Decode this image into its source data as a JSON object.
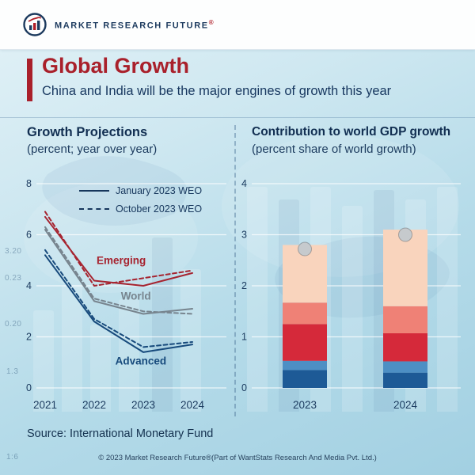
{
  "header": {
    "brand": "MARKET RESEARCH FUTURE",
    "registered_mark": "®"
  },
  "title": {
    "heading": "Global Growth",
    "subtitle": "China and India will be the major engines of growth this year"
  },
  "source": "Source: International Monetary Fund",
  "footer": "© 2023 Market Research Future®(Part of WantStats Research And Media Pvt. Ltd.)",
  "background": {
    "ticker": [
      "3.20",
      "0.23",
      "0.20",
      "1.3",
      "1:6"
    ]
  },
  "colors": {
    "accent_red": "#a9202b",
    "navy": "#17375f",
    "emerging": "#a62430",
    "world": "#77848e",
    "advanced": "#174a7c",
    "marker_gray": "#c6cacd"
  },
  "chart_data": [
    {
      "type": "line",
      "title": "Growth Projections",
      "subtitle": "(percent; year over year)",
      "x": [
        2021,
        2022,
        2023,
        2024
      ],
      "ylim": [
        0,
        8
      ],
      "yticks": [
        0,
        2,
        4,
        6,
        8
      ],
      "grid": true,
      "legend": [
        {
          "label": "January 2023 WEO",
          "style": "solid"
        },
        {
          "label": "October 2023 WEO",
          "style": "dashed"
        }
      ],
      "series": [
        {
          "name": "Emerging (January 2023 WEO)",
          "group": "Emerging",
          "style": "solid",
          "color": "#a62430",
          "values": [
            6.7,
            4.2,
            4.0,
            4.5
          ]
        },
        {
          "name": "Emerging (October 2023 WEO)",
          "group": "Emerging",
          "style": "dashed",
          "color": "#a62430",
          "values": [
            6.9,
            4.0,
            4.3,
            4.6
          ]
        },
        {
          "name": "World (January 2023 WEO)",
          "group": "World",
          "style": "solid",
          "color": "#77848e",
          "values": [
            6.2,
            3.4,
            2.9,
            3.1
          ]
        },
        {
          "name": "World (October 2023 WEO)",
          "group": "World",
          "style": "dashed",
          "color": "#77848e",
          "values": [
            6.3,
            3.5,
            3.0,
            2.9
          ]
        },
        {
          "name": "Advanced (January 2023 WEO)",
          "group": "Advanced",
          "style": "solid",
          "color": "#174a7c",
          "values": [
            5.2,
            2.6,
            1.4,
            1.7
          ]
        },
        {
          "name": "Advanced (October 2023 WEO)",
          "group": "Advanced",
          "style": "dashed",
          "color": "#174a7c",
          "values": [
            5.4,
            2.7,
            1.6,
            1.8
          ]
        }
      ],
      "annotations": [
        {
          "text": "Emerging",
          "color": "#a62430",
          "x": 2022.55,
          "y": 4.85
        },
        {
          "text": "World",
          "color": "#77848e",
          "x": 2022.85,
          "y": 3.45
        },
        {
          "text": "Advanced",
          "color": "#174a7c",
          "x": 2022.95,
          "y": 0.92
        }
      ]
    },
    {
      "type": "bar",
      "title": "Contribution to world GDP growth",
      "subtitle": "(percent share of world growth)",
      "categories": [
        "2023",
        "2024"
      ],
      "ylim": [
        0,
        4
      ],
      "yticks": [
        0,
        1,
        2,
        3,
        4
      ],
      "grid": true,
      "stack_colors": [
        "#1d5a96",
        "#4d8fc4",
        "#d5293a",
        "#ef8176",
        "#f9d4bd"
      ],
      "stacks": [
        [
          0.35,
          0.18,
          0.72,
          0.42,
          1.13
        ],
        [
          0.3,
          0.22,
          0.55,
          0.53,
          1.5
        ]
      ],
      "markers": {
        "color": "#c6cacd",
        "values": [
          2.72,
          3.0
        ]
      }
    }
  ]
}
